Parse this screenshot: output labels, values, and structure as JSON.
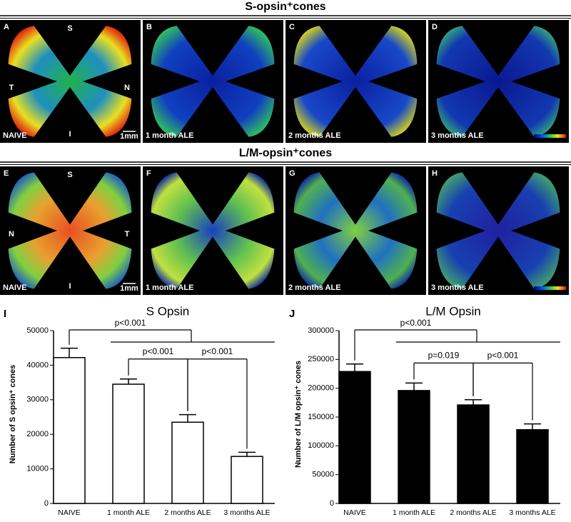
{
  "sections": [
    {
      "title": "S-opsin⁺cones"
    },
    {
      "title": "L/M-opsin⁺cones"
    }
  ],
  "panels": [
    {
      "letter": "A",
      "caption": "NAIVE",
      "orientation": {
        "top": "S",
        "left": "T",
        "right": "N",
        "bottom": "I"
      },
      "scale": "1mm"
    },
    {
      "letter": "B",
      "caption": "1 month ALE"
    },
    {
      "letter": "C",
      "caption": "2 months ALE"
    },
    {
      "letter": "D",
      "caption": "3 months ALE"
    },
    {
      "letter": "E",
      "caption": "NAIVE",
      "orientation": {
        "top": "S",
        "left": "N",
        "right": "T",
        "bottom": "I"
      },
      "scale": "1mm"
    },
    {
      "letter": "F",
      "caption": "1 month ALE"
    },
    {
      "letter": "G",
      "caption": "2 months ALE"
    },
    {
      "letter": "H",
      "caption": "3 months ALE"
    }
  ],
  "chart_data": [
    {
      "type": "bar",
      "panel": "I",
      "title": "S Opsin",
      "ylabel": "Number of S opsin⁺ cones",
      "categories": [
        "NAIVE",
        "1 month ALE",
        "2 months ALE",
        "3 months ALE"
      ],
      "values": [
        42200,
        34500,
        23500,
        13600
      ],
      "errors": [
        2700,
        1500,
        2200,
        1200
      ],
      "color": "#ffffff",
      "edgecolor": "#000000",
      "ylim": [
        0,
        50000
      ],
      "yticks": [
        0,
        10000,
        20000,
        30000,
        40000,
        50000
      ],
      "annotations": [
        "p<0.001",
        "p<0.001",
        "p<0.001"
      ]
    },
    {
      "type": "bar",
      "panel": "J",
      "title": "L/M Opsin",
      "ylabel": "Number of L/M opsin⁺ cones",
      "categories": [
        "NAIVE",
        "1 month ALE",
        "2 months ALE",
        "3 months ALE"
      ],
      "values": [
        229000,
        196000,
        171000,
        128000
      ],
      "errors": [
        13000,
        13000,
        9000,
        10000
      ],
      "color": "#000000",
      "edgecolor": "#000000",
      "ylim": [
        0,
        300000
      ],
      "yticks": [
        0,
        50000,
        100000,
        150000,
        200000,
        250000,
        300000
      ],
      "annotations": [
        "p<0.001",
        "p=0.019",
        "p<0.001"
      ]
    }
  ]
}
